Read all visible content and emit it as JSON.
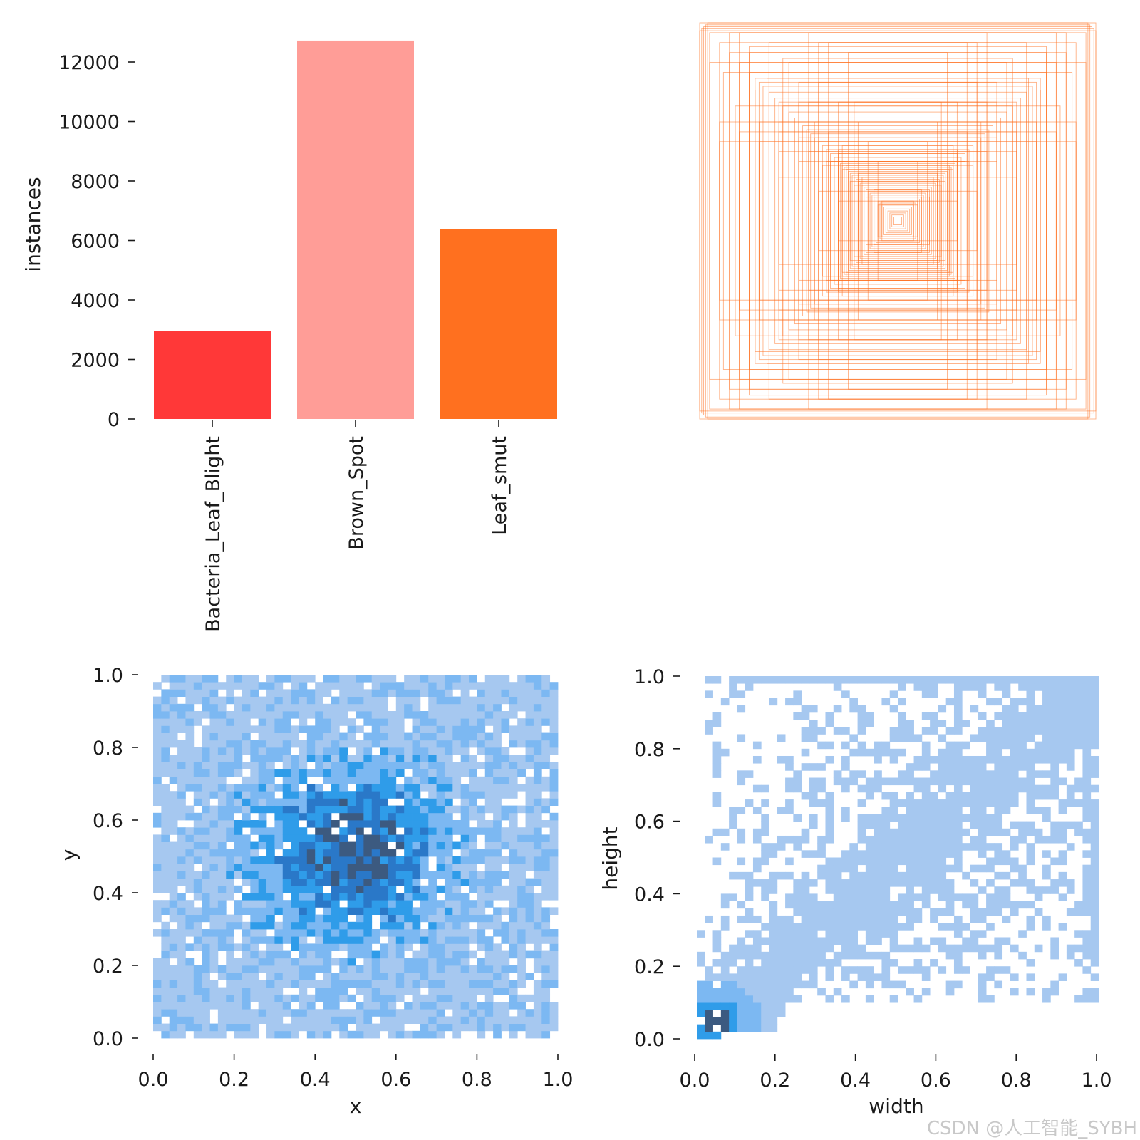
{
  "chart_data": [
    {
      "type": "bar",
      "title": "",
      "xlabel": "",
      "ylabel": "instances",
      "categories": [
        "Bacteria_Leaf_Blight",
        "Brown_Spot",
        "Leaf_smut"
      ],
      "values": [
        2950,
        12720,
        6380
      ],
      "colors": [
        "#ff3838",
        "#ff9d97",
        "#ff701f"
      ],
      "ylim": [
        0,
        13200
      ],
      "yticks": [
        0,
        2000,
        4000,
        6000,
        8000,
        10000,
        12000
      ],
      "ytick_labels": [
        "0",
        "2000",
        "4000",
        "6000",
        "8000",
        "10000",
        "12000"
      ],
      "grid": false
    },
    {
      "type": "box-overlay",
      "title": "",
      "color": "#ff701f",
      "boxes_wh": [
        [
          0.02,
          0.02
        ],
        [
          0.03,
          0.03
        ],
        [
          0.04,
          0.04
        ],
        [
          0.05,
          0.05
        ],
        [
          0.06,
          0.06
        ],
        [
          0.07,
          0.07
        ],
        [
          0.08,
          0.08
        ],
        [
          0.09,
          0.09
        ],
        [
          0.1,
          0.1
        ],
        [
          0.11,
          0.11
        ],
        [
          0.12,
          0.12
        ],
        [
          0.13,
          0.13
        ],
        [
          0.14,
          0.14
        ],
        [
          0.15,
          0.15
        ],
        [
          0.16,
          0.16
        ],
        [
          0.17,
          0.17
        ],
        [
          0.18,
          0.18
        ],
        [
          0.19,
          0.19
        ],
        [
          0.2,
          0.2
        ],
        [
          0.21,
          0.21
        ],
        [
          0.22,
          0.22
        ],
        [
          0.23,
          0.23
        ],
        [
          0.24,
          0.24
        ],
        [
          0.25,
          0.25
        ],
        [
          0.26,
          0.26
        ],
        [
          0.27,
          0.27
        ],
        [
          0.28,
          0.28
        ],
        [
          0.29,
          0.29
        ],
        [
          0.3,
          0.3
        ],
        [
          0.32,
          0.32
        ],
        [
          0.34,
          0.34
        ],
        [
          0.36,
          0.36
        ],
        [
          0.38,
          0.38
        ],
        [
          0.4,
          0.4
        ],
        [
          0.42,
          0.42
        ],
        [
          0.44,
          0.44
        ],
        [
          0.46,
          0.46
        ],
        [
          0.48,
          0.48
        ],
        [
          0.5,
          0.5
        ],
        [
          0.52,
          0.52
        ],
        [
          0.55,
          0.55
        ],
        [
          0.58,
          0.58
        ],
        [
          0.6,
          0.6
        ],
        [
          0.62,
          0.62
        ],
        [
          0.65,
          0.65
        ],
        [
          0.68,
          0.68
        ],
        [
          0.7,
          0.7
        ],
        [
          0.72,
          0.72
        ],
        [
          0.75,
          0.75
        ],
        [
          0.8,
          0.8
        ],
        [
          0.85,
          0.85
        ],
        [
          0.9,
          0.9
        ],
        [
          0.95,
          0.95
        ],
        [
          0.98,
          0.98
        ],
        [
          1.0,
          1.0
        ],
        [
          0.2,
          0.5
        ],
        [
          0.3,
          0.6
        ],
        [
          0.4,
          0.7
        ],
        [
          0.25,
          0.85
        ],
        [
          0.35,
          0.9
        ],
        [
          0.45,
          0.95
        ],
        [
          0.5,
          0.3
        ],
        [
          0.6,
          0.35
        ],
        [
          0.7,
          0.4
        ],
        [
          0.8,
          0.45
        ],
        [
          0.9,
          0.5
        ],
        [
          0.55,
          0.8
        ],
        [
          0.65,
          0.9
        ],
        [
          0.75,
          0.85
        ],
        [
          0.85,
          0.95
        ],
        [
          0.15,
          0.4
        ],
        [
          0.4,
          0.15
        ],
        [
          0.1,
          0.3
        ],
        [
          0.3,
          0.1
        ],
        [
          0.5,
          0.7
        ],
        [
          0.7,
          0.5
        ],
        [
          0.95,
          0.8
        ],
        [
          0.8,
          0.95
        ],
        [
          0.6,
          0.45
        ],
        [
          0.45,
          0.6
        ],
        [
          0.58,
          0.82
        ],
        [
          0.82,
          0.58
        ],
        [
          0.22,
          0.6
        ],
        [
          0.6,
          0.22
        ],
        [
          0.9,
          0.4
        ],
        [
          0.4,
          0.9
        ],
        [
          0.35,
          0.45
        ],
        [
          0.45,
          0.35
        ],
        [
          0.28,
          0.38
        ],
        [
          0.38,
          0.28
        ],
        [
          0.5,
          0.6
        ],
        [
          0.6,
          0.5
        ],
        [
          0.66,
          0.72
        ],
        [
          0.72,
          0.66
        ],
        [
          0.88,
          0.75
        ],
        [
          0.75,
          0.88
        ],
        [
          1.0,
          0.96
        ],
        [
          0.96,
          1.0
        ],
        [
          0.99,
          0.97
        ],
        [
          0.97,
          0.99
        ],
        [
          0.3,
          0.34
        ],
        [
          0.34,
          0.3
        ],
        [
          0.18,
          0.22
        ],
        [
          0.22,
          0.18
        ],
        [
          0.12,
          0.16
        ],
        [
          0.16,
          0.12
        ],
        [
          0.08,
          0.1
        ],
        [
          0.1,
          0.08
        ],
        [
          0.42,
          0.5
        ],
        [
          0.5,
          0.42
        ],
        [
          0.36,
          0.3
        ],
        [
          0.3,
          0.36
        ],
        [
          0.26,
          0.28
        ],
        [
          0.28,
          0.26
        ],
        [
          0.2,
          0.24
        ],
        [
          0.24,
          0.2
        ]
      ]
    },
    {
      "type": "heatmap",
      "title": "",
      "xlabel": "x",
      "ylabel": "y",
      "xlim": [
        0,
        1
      ],
      "ylim": [
        0,
        1
      ],
      "xticks": [
        0.0,
        0.2,
        0.4,
        0.6,
        0.8,
        1.0
      ],
      "xtick_labels": [
        "0.0",
        "0.2",
        "0.4",
        "0.6",
        "0.8",
        "1.0"
      ],
      "yticks": [
        0.0,
        0.2,
        0.4,
        0.6,
        0.8,
        1.0
      ],
      "ytick_labels": [
        "0.0",
        "0.2",
        "0.4",
        "0.6",
        "0.8",
        "1.0"
      ],
      "bins": 50,
      "center": [
        0.49,
        0.51
      ],
      "colors": [
        "#a6c8f0",
        "#7cb8f2",
        "#2f9ce9",
        "#2a78c8",
        "#3c5a80"
      ],
      "grid": false
    },
    {
      "type": "heatmap",
      "title": "",
      "xlabel": "width",
      "ylabel": "height",
      "xlim": [
        0,
        1
      ],
      "ylim": [
        0,
        1
      ],
      "xticks": [
        0.0,
        0.2,
        0.4,
        0.6,
        0.8,
        1.0
      ],
      "xtick_labels": [
        "0.0",
        "0.2",
        "0.4",
        "0.6",
        "0.8",
        "1.0"
      ],
      "yticks": [
        0.0,
        0.2,
        0.4,
        0.6,
        0.8,
        1.0
      ],
      "ytick_labels": [
        "0.0",
        "0.2",
        "0.4",
        "0.6",
        "0.8",
        "1.0"
      ],
      "bins": 50,
      "colors": [
        "#a6c8f0",
        "#7cb8f2",
        "#2f9ce9",
        "#2a78c8",
        "#3c5a80"
      ],
      "grid": false
    }
  ],
  "watermark": "CSDN @人工智能_SYBH"
}
